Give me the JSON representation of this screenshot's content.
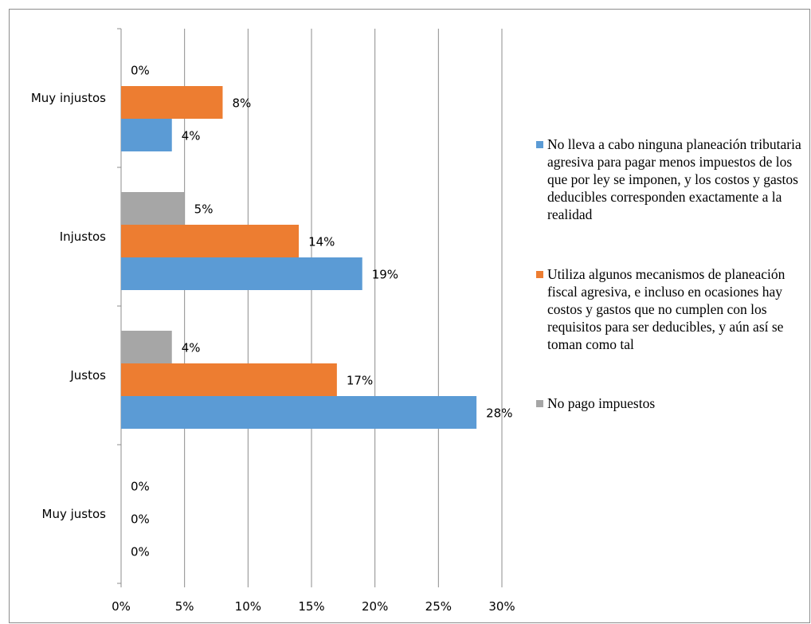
{
  "chart_data": {
    "type": "bar",
    "orientation": "horizontal",
    "categories": [
      "Muy injustos",
      "Injustos",
      "Justos",
      "Muy justos"
    ],
    "series": [
      {
        "name": "No pago impuestos",
        "color": "#a6a6a6",
        "values": [
          0,
          5,
          4,
          0
        ],
        "labels": [
          "0%",
          "5%",
          "4%",
          "0%"
        ]
      },
      {
        "name": "Utiliza algunos mecanismos de planeación fiscal agresiva, e incluso en ocasiones hay costos y gastos que no cumplen con los requisitos para ser deducibles, y aún así se toman como tal",
        "color": "#ed7d31",
        "values": [
          8,
          14,
          17,
          0
        ],
        "labels": [
          "8%",
          "14%",
          "17%",
          "0%"
        ]
      },
      {
        "name": "No lleva a cabo ninguna planeación tributaria agresiva para pagar menos impuestos de los que por ley se imponen, y los costos y gastos deducibles corresponden exactamente a la realidad",
        "color": "#5b9bd5",
        "values": [
          4,
          19,
          28,
          0
        ],
        "labels": [
          "4%",
          "19%",
          "28%",
          "0%"
        ]
      }
    ],
    "x_ticks": [
      "0%",
      "5%",
      "10%",
      "15%",
      "20%",
      "25%",
      "30%"
    ],
    "xlim": [
      0,
      30
    ],
    "grid": true,
    "legend_position": "right",
    "title": "",
    "xlabel": "",
    "ylabel": ""
  }
}
